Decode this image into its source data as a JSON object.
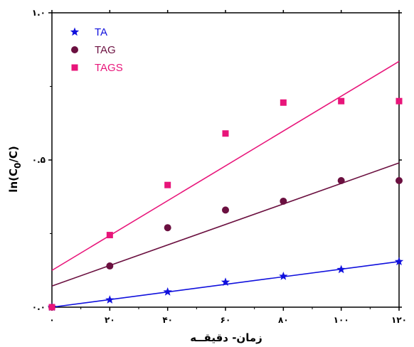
{
  "chart_data": {
    "type": "scatter",
    "xlabel": "زمان- دقیقــه",
    "ylabel_main": "ln(C",
    "ylabel_sub": "0",
    "ylabel_tail": "/C)",
    "xlim": [
      0,
      120
    ],
    "ylim": [
      0,
      1
    ],
    "x_ticks": [
      0,
      20,
      40,
      60,
      80,
      100,
      120
    ],
    "x_tick_labels": [
      "۰",
      "۲۰",
      "۴۰",
      "۶۰",
      "۸۰",
      "۱۰۰",
      "۱۲۰"
    ],
    "y_ticks": [
      0,
      0.5,
      1
    ],
    "y_tick_labels": [
      "۰.۰",
      "۰.۵",
      "۱.۰"
    ],
    "legend_position": "top-left",
    "grid": false,
    "series": [
      {
        "name": "TA",
        "marker": "star",
        "color": "#1010dd",
        "x": [
          0,
          20,
          40,
          60,
          80,
          100,
          120
        ],
        "y": [
          0.0,
          0.025,
          0.052,
          0.085,
          0.105,
          0.128,
          0.155
        ],
        "fit_line": [
          [
            0,
            0.0
          ],
          [
            120,
            0.155
          ]
        ]
      },
      {
        "name": "TAG",
        "marker": "circle",
        "color": "#6b1040",
        "x": [
          0,
          20,
          40,
          60,
          80,
          100,
          120
        ],
        "y": [
          0.0,
          0.14,
          0.27,
          0.33,
          0.36,
          0.43,
          0.43
        ],
        "fit_line": [
          [
            0,
            0.072
          ],
          [
            120,
            0.49
          ]
        ]
      },
      {
        "name": "TAGS",
        "marker": "square",
        "color": "#e8157a",
        "x": [
          0,
          20,
          40,
          60,
          80,
          100,
          120
        ],
        "y": [
          0.0,
          0.245,
          0.415,
          0.59,
          0.695,
          0.7,
          0.7
        ],
        "fit_line": [
          [
            0,
            0.125
          ],
          [
            120,
            0.835
          ]
        ]
      }
    ]
  }
}
